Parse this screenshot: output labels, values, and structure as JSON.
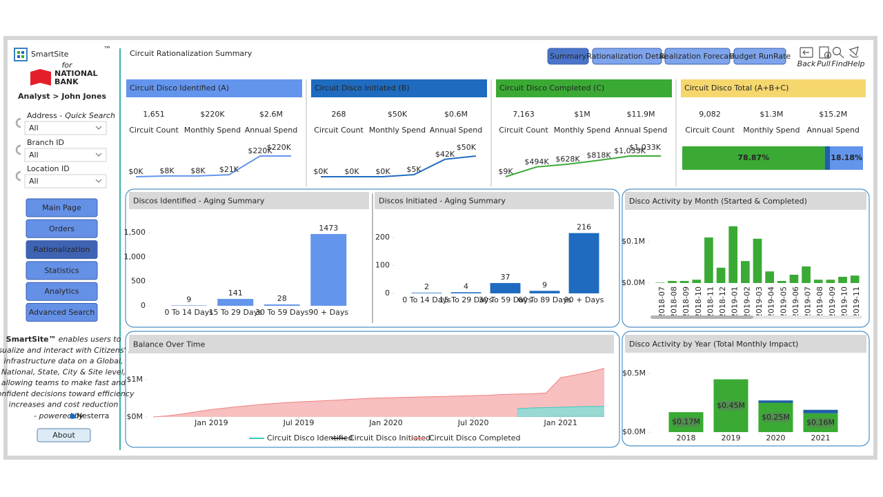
{
  "sidebar": {
    "logo": "SmartSite",
    "logo_tm": "™",
    "logo_for": "for",
    "bank_line1": "NATIONAL",
    "bank_line2": "BANK",
    "user": "Analyst > John Jones",
    "filters": [
      {
        "label": "Address -",
        "label_note": "Quick Search",
        "value": "All"
      },
      {
        "label": "Branch ID",
        "value": "All"
      },
      {
        "label": "Location ID",
        "value": "All"
      }
    ],
    "nav": [
      "Main Page",
      "Orders",
      "Rationalization",
      "Statistics",
      "Analytics",
      "Advanced Search"
    ],
    "brand": "SmartSite™",
    "description_lead": "enables users to",
    "description": [
      "visualize and interact with Citizens' IT",
      "infrastructure data on a Global,",
      "National, State, City & Site level,",
      "allowing teams to make fast and",
      "confident decisions toward efficiency",
      "increases and cost reduction"
    ],
    "powered_by": "- powered by",
    "vendor": "Nesterra",
    "about": "About"
  },
  "header": {
    "title": "Circuit Rationalization Summary",
    "tabs": [
      "Summary",
      "Rationalization Detail",
      "Realization Forecast",
      "Budget RunRate"
    ],
    "tools": [
      "Back",
      "Pull",
      "Find",
      "Help"
    ]
  },
  "kpis": [
    {
      "title": "Circuit Disco Identified (A)",
      "color": "#6495ed",
      "metrics": [
        {
          "value": "1,651",
          "label": "Circuit Count"
        },
        {
          "value": "$220K",
          "label": "Monthly Spend"
        },
        {
          "value": "$2.6M",
          "label": "Annual Spend"
        }
      ],
      "trend": {
        "values": [
          0,
          8,
          8,
          21,
          220,
          220
        ],
        "value_labels": [
          "$0K",
          "$8K",
          "$8K",
          "$21K",
          "$220K",
          "$220K"
        ]
      }
    },
    {
      "title": "Circuit Disco Initiated (B)",
      "color": "#1f6bbf",
      "metrics": [
        {
          "value": "268",
          "label": "Circuit Count"
        },
        {
          "value": "$50K",
          "label": "Monthly Spend"
        },
        {
          "value": "$0.6M",
          "label": "Annual Spend"
        }
      ],
      "trend": {
        "values": [
          0,
          0,
          0,
          5,
          42,
          50
        ],
        "value_labels": [
          "$0K",
          "$0K",
          "$0K",
          "$5K",
          "$42K",
          "$50K"
        ]
      }
    },
    {
      "title": "Circuit Disco Completed (C)",
      "color": "#3aaa35",
      "metrics": [
        {
          "value": "7,163",
          "label": "Circuit Count"
        },
        {
          "value": "$1M",
          "label": "Monthly Spend"
        },
        {
          "value": "$11.9M",
          "label": "Annual Spend"
        }
      ],
      "trend": {
        "values": [
          9,
          494,
          628,
          818,
          1033,
          1033
        ],
        "value_labels": [
          "$9K",
          "$494K",
          "$628K",
          "$818K",
          "$1,033K",
          "$1,033K"
        ]
      }
    },
    {
      "title": "Circuit Disco Total (A+B+C)",
      "color": "#f5d76e",
      "metrics": [
        {
          "value": "9,082",
          "label": "Circuit Count"
        },
        {
          "value": "$1.3M",
          "label": "Monthly Spend"
        },
        {
          "value": "$15.2M",
          "label": "Annual Spend"
        }
      ],
      "share": {
        "values": [
          78.87,
          2.95,
          18.18
        ],
        "value_labels": [
          "78.87%",
          null,
          "18.18%"
        ],
        "colors": [
          "#3aaa35",
          "#1f5fa8",
          "#6495ed"
        ]
      }
    }
  ],
  "charts": [
    {
      "type": "bar",
      "title": "Discos Identified - Aging Summary",
      "categories": [
        "0 To 14 Days",
        "15 To 29 Days",
        "30 To 59 Days",
        "90 + Days"
      ],
      "values": [
        9,
        141,
        28,
        1473
      ],
      "color": "#6495ed",
      "data_labels": true,
      "ylim": [
        0,
        1600
      ],
      "yticks": [
        0,
        500,
        {
          "value": 1000,
          "label": "1,000"
        },
        {
          "value": 1500,
          "label": "1,500"
        }
      ]
    },
    {
      "type": "bar",
      "title": "Discos Initiated - Aging Summary",
      "categories": [
        "0 To 14 Days",
        "15 To 29 Days",
        "30 To 59 Days",
        "60 To 89 Days",
        "90 + Days"
      ],
      "values": [
        2,
        4,
        37,
        9,
        216
      ],
      "color": "#1f6bbf",
      "data_labels": true,
      "ylim": [
        0,
        230
      ],
      "yticks": [
        0,
        100,
        200
      ]
    },
    {
      "type": "bar",
      "title": "Disco Activity by Month (Started & Completed)",
      "categories": [
        "2018-07",
        "2018-08",
        "2018-09",
        "2018-10",
        "2018-11",
        "2018-12",
        "2019-01",
        "2019-02",
        "2019-03",
        "2019-04",
        "2019-05",
        "2019-06",
        "2019-07",
        "2019-08",
        "2019-09",
        "2019-10",
        "2019-11"
      ],
      "values": [
        0.001,
        0.005,
        0.005,
        0.008,
        0.11,
        0.037,
        0.137,
        0.053,
        0.107,
        0.028,
        0.005,
        0.02,
        0.04,
        0.008,
        0.008,
        0.015,
        0.018
      ],
      "color": "#3aaa35",
      "data_labels": false,
      "rotate_labels": true,
      "ylim": [
        0,
        0.145
      ],
      "yticks": [
        {
          "value": 0,
          "label": "$0.0M"
        },
        {
          "value": 0.1,
          "label": "$0.1M"
        }
      ]
    },
    {
      "type": "stacked_bar",
      "title": "Disco Activity by Year (Total Monthly Impact)",
      "categories": [
        "2018",
        "2019",
        "2020",
        "2021"
      ],
      "series": [
        {
          "color": "#3aaa35",
          "values": [
            0.17,
            0.45,
            0.25,
            0.16
          ],
          "value_labels": [
            "$0.17M",
            "$0.45M",
            "$0.25M",
            "$0.16M"
          ]
        },
        {
          "color": "#1f5fa8",
          "values": [
            0,
            0,
            0.02,
            0.03
          ]
        }
      ],
      "ylim": [
        0,
        0.55
      ],
      "yticks": [
        {
          "value": 0,
          "label": "$0.0M"
        },
        {
          "value": 0.5,
          "label": "$0.5M"
        }
      ]
    },
    {
      "type": "area",
      "title": "Balance Over Time",
      "x": [
        "2018-09",
        "2018-10",
        "2018-11",
        "2018-12",
        "2019-01",
        "2019-02",
        "2019-03",
        "2019-04",
        "2019-05",
        "2019-06",
        "2019-07",
        "2019-08",
        "2019-09",
        "2019-10",
        "2019-11",
        "2019-12",
        "2020-01",
        "2020-02",
        "2020-03",
        "2020-04",
        "2020-05",
        "2020-06",
        "2020-07",
        "2020-08",
        "2020-09",
        "2020-10",
        "2020-11",
        "2020-12",
        "2021-01",
        "2021-02",
        "2021-03",
        "2021-04"
      ],
      "series": [
        {
          "name": "Circuit Disco Identified",
          "color": "#3cc8c0",
          "fill": "#8fdcd5",
          "values": [
            null,
            null,
            null,
            null,
            null,
            null,
            null,
            null,
            null,
            null,
            null,
            null,
            null,
            null,
            null,
            null,
            null,
            null,
            null,
            null,
            null,
            null,
            null,
            null,
            null,
            0.22,
            0.24,
            0.25,
            0.26,
            0.27,
            0.28,
            0.28
          ]
        },
        {
          "name": "Circuit Disco Initiated",
          "color": "#333333",
          "fill": "#555555",
          "values": [
            null,
            null,
            null,
            null,
            null,
            null,
            null,
            null,
            null,
            null,
            null,
            null,
            null,
            null,
            null,
            null,
            null,
            null,
            null,
            null,
            null,
            null,
            null,
            null,
            null,
            0.01,
            0.01,
            0.01,
            0.02,
            0.02,
            0.02,
            0.02
          ]
        },
        {
          "name": "Circuit Disco Completed",
          "color": "#f08080",
          "fill": "#f6b8b8",
          "values": [
            0.0,
            0.03,
            0.08,
            0.14,
            0.2,
            0.24,
            0.28,
            0.32,
            0.35,
            0.38,
            0.4,
            0.42,
            0.44,
            0.46,
            0.48,
            0.5,
            0.51,
            0.52,
            0.53,
            0.54,
            0.55,
            0.56,
            0.57,
            0.58,
            0.6,
            0.61,
            0.62,
            0.64,
            1.05,
            1.12,
            1.2,
            1.3
          ]
        }
      ],
      "xlim": [
        "2018-09",
        "2021-04"
      ],
      "xticks": [
        {
          "value": "2019-01",
          "label": "Jan 2019"
        },
        {
          "value": "2019-07",
          "label": "Jul 2019"
        },
        {
          "value": "2020-01",
          "label": "Jan 2020"
        },
        {
          "value": "2020-07",
          "label": "Jul 2020"
        },
        {
          "value": "2021-01",
          "label": "Jan 2021"
        }
      ],
      "ylim": [
        0,
        1.55
      ],
      "yticks": [
        {
          "value": 0,
          "label": "$0M"
        },
        {
          "value": 1,
          "label": "$1M"
        }
      ],
      "legend": "bottom"
    }
  ]
}
